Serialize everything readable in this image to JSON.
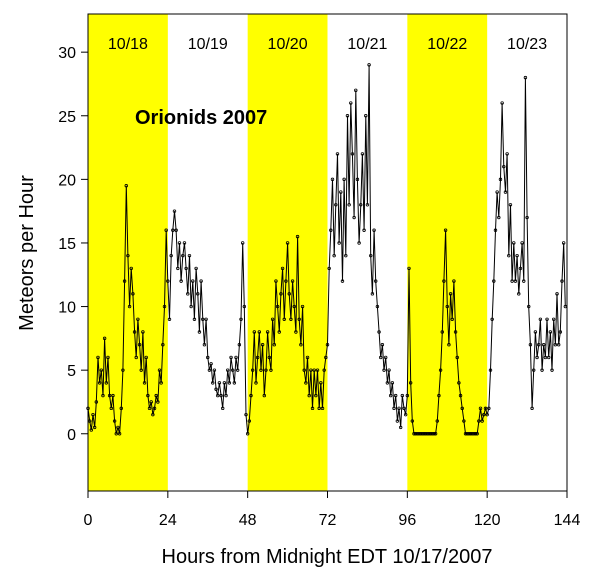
{
  "chart_data": {
    "type": "line",
    "title": "",
    "annotation": "Orionids 2007",
    "xlabel": "Hours from Midnight EDT 10/17/2007",
    "ylabel": "Meteors per Hour",
    "xlim": [
      0,
      144
    ],
    "ylim": [
      -4.5,
      33
    ],
    "x_ticks": [
      0,
      24,
      48,
      72,
      96,
      120,
      144
    ],
    "y_ticks": [
      0,
      5,
      10,
      15,
      20,
      25,
      30
    ],
    "grid": false,
    "highlight_color": "#ffff00",
    "line_color": "#000000",
    "day_bands": [
      {
        "label": "10/18",
        "start": 0,
        "end": 24,
        "highlighted": true
      },
      {
        "label": "10/19",
        "start": 24,
        "end": 48,
        "highlighted": false
      },
      {
        "label": "10/20",
        "start": 48,
        "end": 72,
        "highlighted": true
      },
      {
        "label": "10/21",
        "start": 72,
        "end": 96,
        "highlighted": false
      },
      {
        "label": "10/22",
        "start": 96,
        "end": 120,
        "highlighted": true
      },
      {
        "label": "10/23",
        "start": 120,
        "end": 144,
        "highlighted": false
      }
    ],
    "series": [
      {
        "values": [
          [
            0,
            2
          ],
          [
            0.5,
            1
          ],
          [
            1,
            0.3
          ],
          [
            1.5,
            1.5
          ],
          [
            2,
            0.5
          ],
          [
            2.5,
            2.5
          ],
          [
            3,
            6
          ],
          [
            3.5,
            4
          ],
          [
            4,
            5
          ],
          [
            4.5,
            3
          ],
          [
            5,
            7.5
          ],
          [
            5.5,
            4
          ],
          [
            6,
            6
          ],
          [
            6.5,
            3
          ],
          [
            7,
            2
          ],
          [
            7.5,
            3
          ],
          [
            8,
            1
          ],
          [
            8.5,
            0
          ],
          [
            9,
            0.5
          ],
          [
            9.5,
            0
          ],
          [
            10,
            2
          ],
          [
            10.5,
            5
          ],
          [
            11,
            12
          ],
          [
            11.5,
            19.5
          ],
          [
            12,
            14
          ],
          [
            12.5,
            10
          ],
          [
            13,
            13
          ],
          [
            13.5,
            11
          ],
          [
            14,
            8
          ],
          [
            14.5,
            6
          ],
          [
            15,
            9
          ],
          [
            15.5,
            7
          ],
          [
            16,
            5
          ],
          [
            16.5,
            8
          ],
          [
            17,
            4
          ],
          [
            17.5,
            6
          ],
          [
            18,
            3
          ],
          [
            18.5,
            2
          ],
          [
            19,
            2.5
          ],
          [
            19.5,
            1.5
          ],
          [
            20,
            2
          ],
          [
            20.5,
            3
          ],
          [
            21,
            2.5
          ],
          [
            21.5,
            5
          ],
          [
            22,
            4
          ],
          [
            22.5,
            7
          ],
          [
            23,
            10
          ],
          [
            23.5,
            16
          ],
          [
            24,
            12
          ],
          [
            24.5,
            9
          ],
          [
            25,
            14
          ],
          [
            25.5,
            16
          ],
          [
            26,
            17.5
          ],
          [
            26.5,
            16
          ],
          [
            27,
            13
          ],
          [
            27.5,
            15
          ],
          [
            28,
            12
          ],
          [
            28.5,
            14
          ],
          [
            29,
            15
          ],
          [
            29.5,
            13
          ],
          [
            30,
            11
          ],
          [
            30.5,
            14
          ],
          [
            31,
            10
          ],
          [
            31.5,
            12
          ],
          [
            32,
            9
          ],
          [
            32.5,
            13
          ],
          [
            33,
            11
          ],
          [
            33.5,
            8
          ],
          [
            34,
            12
          ],
          [
            34.5,
            9
          ],
          [
            35,
            7
          ],
          [
            35.5,
            9
          ],
          [
            36,
            6
          ],
          [
            36.5,
            5
          ],
          [
            37,
            5.5
          ],
          [
            37.5,
            4
          ],
          [
            38,
            5
          ],
          [
            38.5,
            3.5
          ],
          [
            39,
            3
          ],
          [
            39.5,
            4
          ],
          [
            40,
            3
          ],
          [
            40.5,
            2
          ],
          [
            41,
            4
          ],
          [
            41.5,
            3
          ],
          [
            42,
            5
          ],
          [
            42.5,
            4
          ],
          [
            43,
            6
          ],
          [
            43.5,
            5
          ],
          [
            44,
            4
          ],
          [
            44.5,
            6
          ],
          [
            45,
            5
          ],
          [
            45.5,
            7
          ],
          [
            46,
            9
          ],
          [
            46.5,
            15
          ],
          [
            47,
            10
          ],
          [
            47.5,
            1.5
          ],
          [
            48,
            0
          ],
          [
            48.5,
            1
          ],
          [
            49,
            3
          ],
          [
            49.5,
            5
          ],
          [
            50,
            8
          ],
          [
            50.5,
            4
          ],
          [
            51,
            6
          ],
          [
            51.5,
            8
          ],
          [
            52,
            5
          ],
          [
            52.5,
            7
          ],
          [
            53,
            3
          ],
          [
            53.5,
            5
          ],
          [
            54,
            8
          ],
          [
            54.5,
            6
          ],
          [
            55,
            5
          ],
          [
            55.5,
            9
          ],
          [
            56,
            7
          ],
          [
            56.5,
            12
          ],
          [
            57,
            10
          ],
          [
            57.5,
            8
          ],
          [
            58,
            11
          ],
          [
            58.5,
            13
          ],
          [
            59,
            9
          ],
          [
            59.5,
            12
          ],
          [
            60,
            15
          ],
          [
            60.5,
            11
          ],
          [
            61,
            9
          ],
          [
            61.5,
            12
          ],
          [
            62,
            10
          ],
          [
            62.5,
            8
          ],
          [
            63,
            15.5
          ],
          [
            63.5,
            9
          ],
          [
            64,
            7
          ],
          [
            64.5,
            10
          ],
          [
            65,
            5
          ],
          [
            65.5,
            4
          ],
          [
            66,
            6
          ],
          [
            66.5,
            3
          ],
          [
            67,
            5
          ],
          [
            67.5,
            2
          ],
          [
            68,
            5
          ],
          [
            68.5,
            3
          ],
          [
            69,
            5
          ],
          [
            69.5,
            2
          ],
          [
            70,
            4
          ],
          [
            70.5,
            2
          ],
          [
            71,
            5
          ],
          [
            71.5,
            6
          ],
          [
            72,
            7
          ],
          [
            72.5,
            13
          ],
          [
            73,
            16
          ],
          [
            73.5,
            20
          ],
          [
            74,
            14
          ],
          [
            74.5,
            18
          ],
          [
            75,
            22
          ],
          [
            75.5,
            15
          ],
          [
            76,
            19
          ],
          [
            76.5,
            12
          ],
          [
            77,
            20
          ],
          [
            77.5,
            14
          ],
          [
            78,
            25
          ],
          [
            78.5,
            18
          ],
          [
            79,
            26
          ],
          [
            79.5,
            22
          ],
          [
            80,
            17
          ],
          [
            80.5,
            27
          ],
          [
            81,
            20
          ],
          [
            81.5,
            15
          ],
          [
            82,
            18
          ],
          [
            82.5,
            22
          ],
          [
            83,
            16
          ],
          [
            83.5,
            25
          ],
          [
            84,
            18
          ],
          [
            84.5,
            29
          ],
          [
            85,
            14
          ],
          [
            85.5,
            11
          ],
          [
            86,
            16
          ],
          [
            86.5,
            12
          ],
          [
            87,
            10
          ],
          [
            87.5,
            8
          ],
          [
            88,
            6
          ],
          [
            88.5,
            7
          ],
          [
            89,
            5
          ],
          [
            89.5,
            6
          ],
          [
            90,
            4
          ],
          [
            90.5,
            5
          ],
          [
            91,
            3
          ],
          [
            91.5,
            4
          ],
          [
            92,
            2
          ],
          [
            92.5,
            3
          ],
          [
            93,
            1
          ],
          [
            93.5,
            2
          ],
          [
            94,
            0.5
          ],
          [
            94.5,
            3
          ],
          [
            95,
            2
          ],
          [
            95.5,
            1.5
          ],
          [
            96,
            3
          ],
          [
            96.5,
            13
          ],
          [
            97,
            4
          ],
          [
            97.5,
            1
          ],
          [
            98,
            0
          ],
          [
            98.5,
            0
          ],
          [
            99,
            0
          ],
          [
            99.5,
            0
          ],
          [
            100,
            0
          ],
          [
            100.5,
            0
          ],
          [
            101,
            0
          ],
          [
            101.5,
            0
          ],
          [
            102,
            0
          ],
          [
            102.5,
            0
          ],
          [
            103,
            0
          ],
          [
            103.5,
            0
          ],
          [
            104,
            0
          ],
          [
            104.5,
            0
          ],
          [
            105,
            1
          ],
          [
            105.5,
            3
          ],
          [
            106,
            5
          ],
          [
            106.5,
            8
          ],
          [
            107,
            12
          ],
          [
            107.5,
            16
          ],
          [
            108,
            10
          ],
          [
            108.5,
            7
          ],
          [
            109,
            11
          ],
          [
            109.5,
            9
          ],
          [
            110,
            12
          ],
          [
            110.5,
            8
          ],
          [
            111,
            6
          ],
          [
            111.5,
            4
          ],
          [
            112,
            3
          ],
          [
            112.5,
            2
          ],
          [
            113,
            1
          ],
          [
            113.5,
            0
          ],
          [
            114,
            0
          ],
          [
            114.5,
            0
          ],
          [
            115,
            0
          ],
          [
            115.5,
            0
          ],
          [
            116,
            0
          ],
          [
            116.5,
            0
          ],
          [
            117,
            0
          ],
          [
            117.5,
            1
          ],
          [
            118,
            2
          ],
          [
            118.5,
            1
          ],
          [
            119,
            1.5
          ],
          [
            119.5,
            2
          ],
          [
            120,
            1.5
          ],
          [
            120.5,
            2
          ],
          [
            121,
            5
          ],
          [
            121.5,
            9
          ],
          [
            122,
            12
          ],
          [
            122.5,
            16
          ],
          [
            123,
            19
          ],
          [
            123.5,
            17
          ],
          [
            124,
            20
          ],
          [
            124.5,
            26
          ],
          [
            125,
            21
          ],
          [
            125.5,
            19
          ],
          [
            126,
            22
          ],
          [
            126.5,
            14
          ],
          [
            127,
            18
          ],
          [
            127.5,
            12
          ],
          [
            128,
            15
          ],
          [
            128.5,
            12
          ],
          [
            129,
            14
          ],
          [
            129.5,
            11
          ],
          [
            130,
            13
          ],
          [
            130.5,
            15
          ],
          [
            131,
            12
          ],
          [
            131.5,
            28
          ],
          [
            132,
            17
          ],
          [
            132.5,
            10
          ],
          [
            133,
            7
          ],
          [
            133.5,
            2
          ],
          [
            134,
            5
          ],
          [
            134.5,
            8
          ],
          [
            135,
            6
          ],
          [
            135.5,
            7
          ],
          [
            136,
            9
          ],
          [
            136.5,
            5
          ],
          [
            137,
            7
          ],
          [
            137.5,
            6
          ],
          [
            138,
            9
          ],
          [
            138.5,
            6
          ],
          [
            139,
            8
          ],
          [
            139.5,
            5
          ],
          [
            140,
            9
          ],
          [
            140.5,
            7
          ],
          [
            141,
            11
          ],
          [
            141.5,
            7
          ],
          [
            142,
            8
          ],
          [
            142.5,
            12
          ],
          [
            143,
            15
          ],
          [
            143.5,
            10
          ]
        ]
      }
    ]
  }
}
